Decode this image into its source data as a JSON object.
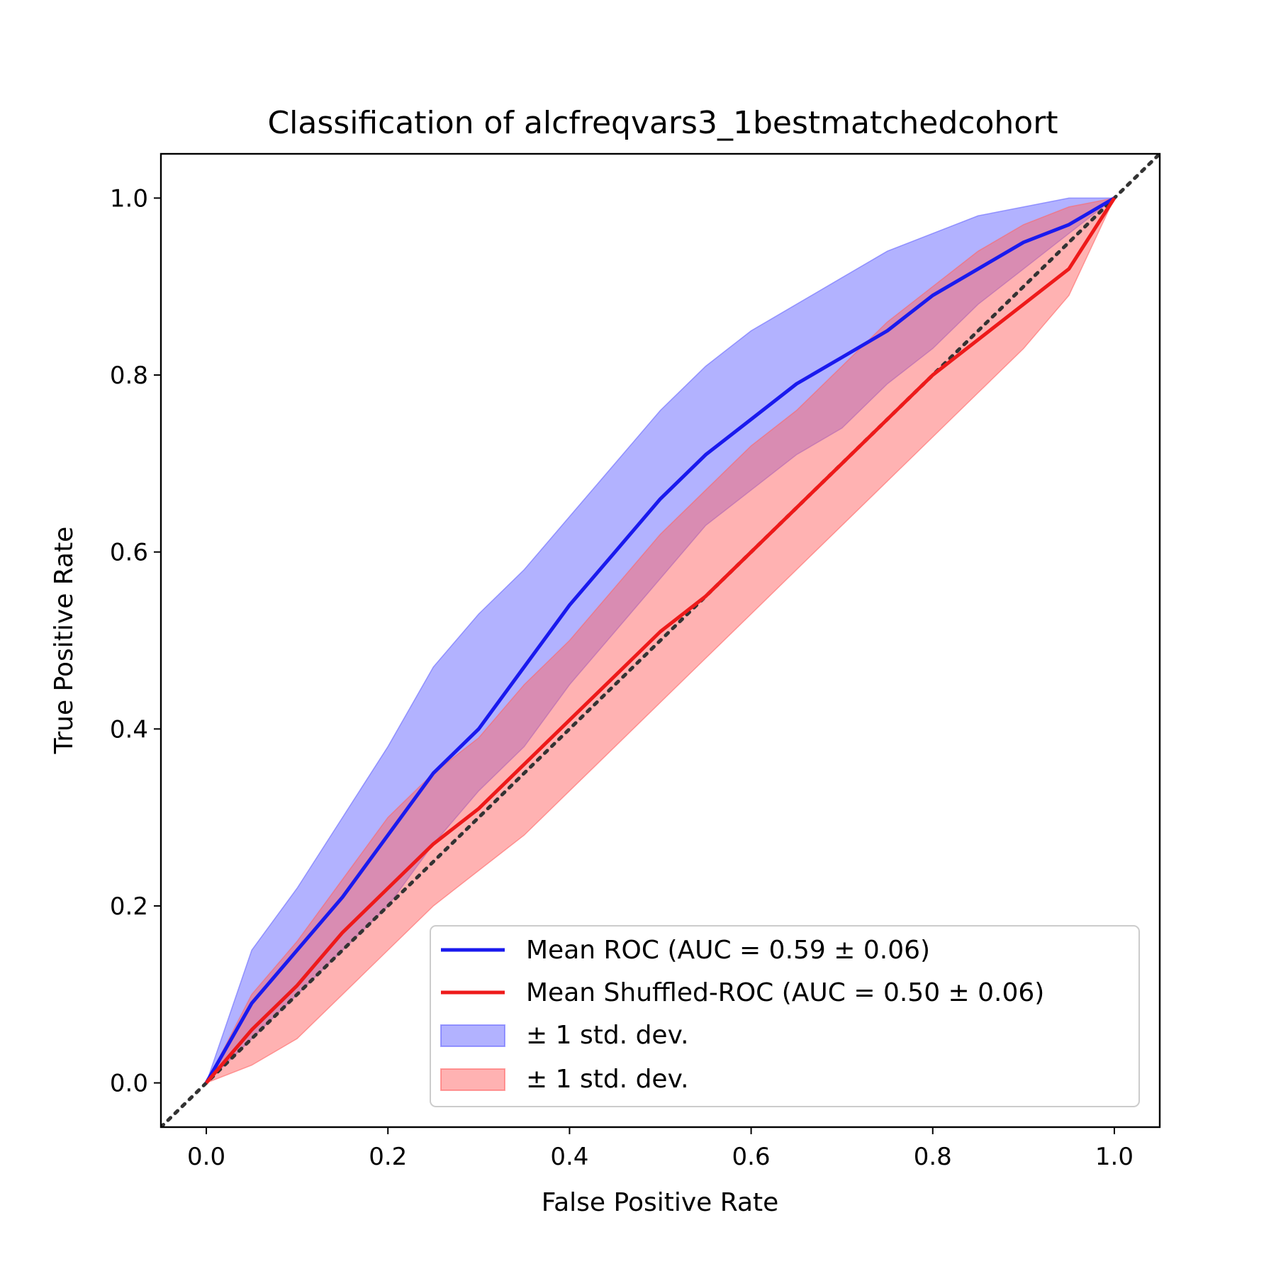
{
  "chart_data": {
    "type": "line",
    "title": "Classification of alcfreqvars3_1bestmatchedcohort",
    "xlabel": "False Positive Rate",
    "ylabel": "True Positive Rate",
    "xlim": [
      -0.05,
      1.05
    ],
    "ylim": [
      -0.05,
      1.05
    ],
    "xticks": [
      "0.0",
      "0.2",
      "0.4",
      "0.6",
      "0.8",
      "1.0"
    ],
    "yticks": [
      "0.0",
      "0.2",
      "0.4",
      "0.6",
      "0.8",
      "1.0"
    ],
    "grid": false,
    "legend_position": "lower-right",
    "x": [
      0.0,
      0.05,
      0.1,
      0.15,
      0.2,
      0.25,
      0.3,
      0.35,
      0.4,
      0.45,
      0.5,
      0.55,
      0.6,
      0.65,
      0.7,
      0.75,
      0.8,
      0.85,
      0.9,
      0.95,
      1.0
    ],
    "series": [
      {
        "name": "Mean ROC (AUC = 0.59 ± 0.06)",
        "color": "#1a1aee",
        "values": [
          0.0,
          0.09,
          0.15,
          0.21,
          0.28,
          0.35,
          0.4,
          0.47,
          0.54,
          0.6,
          0.66,
          0.71,
          0.75,
          0.79,
          0.82,
          0.85,
          0.89,
          0.92,
          0.95,
          0.97,
          1.0
        ]
      },
      {
        "name": "Mean Shuffled-ROC (AUC = 0.50 ± 0.06)",
        "color": "#ee1a1a",
        "values": [
          0.0,
          0.06,
          0.11,
          0.17,
          0.22,
          0.27,
          0.31,
          0.36,
          0.41,
          0.46,
          0.51,
          0.55,
          0.6,
          0.65,
          0.7,
          0.75,
          0.8,
          0.84,
          0.88,
          0.92,
          1.0
        ]
      }
    ],
    "bands": [
      {
        "name": "± 1 std. dev.",
        "color": "#6666ff",
        "lower": [
          0.0,
          0.05,
          0.1,
          0.15,
          0.2,
          0.27,
          0.33,
          0.38,
          0.45,
          0.51,
          0.57,
          0.63,
          0.67,
          0.71,
          0.74,
          0.79,
          0.83,
          0.88,
          0.92,
          0.96,
          1.0
        ],
        "upper": [
          0.0,
          0.15,
          0.22,
          0.3,
          0.38,
          0.47,
          0.53,
          0.58,
          0.64,
          0.7,
          0.76,
          0.81,
          0.85,
          0.88,
          0.91,
          0.94,
          0.96,
          0.98,
          0.99,
          1.0,
          1.0
        ]
      },
      {
        "name": "± 1 std. dev.",
        "color": "#ff6666",
        "lower": [
          0.0,
          0.02,
          0.05,
          0.1,
          0.15,
          0.2,
          0.24,
          0.28,
          0.33,
          0.38,
          0.43,
          0.48,
          0.53,
          0.58,
          0.63,
          0.68,
          0.73,
          0.78,
          0.83,
          0.89,
          1.0
        ],
        "upper": [
          0.0,
          0.1,
          0.16,
          0.23,
          0.3,
          0.35,
          0.39,
          0.45,
          0.5,
          0.56,
          0.62,
          0.67,
          0.72,
          0.76,
          0.81,
          0.86,
          0.9,
          0.94,
          0.97,
          0.99,
          1.0
        ]
      }
    ],
    "diagonal": {
      "x": [
        -0.05,
        1.05
      ],
      "y": [
        -0.05,
        1.05
      ],
      "color": "#333333",
      "style": "dotted"
    }
  }
}
